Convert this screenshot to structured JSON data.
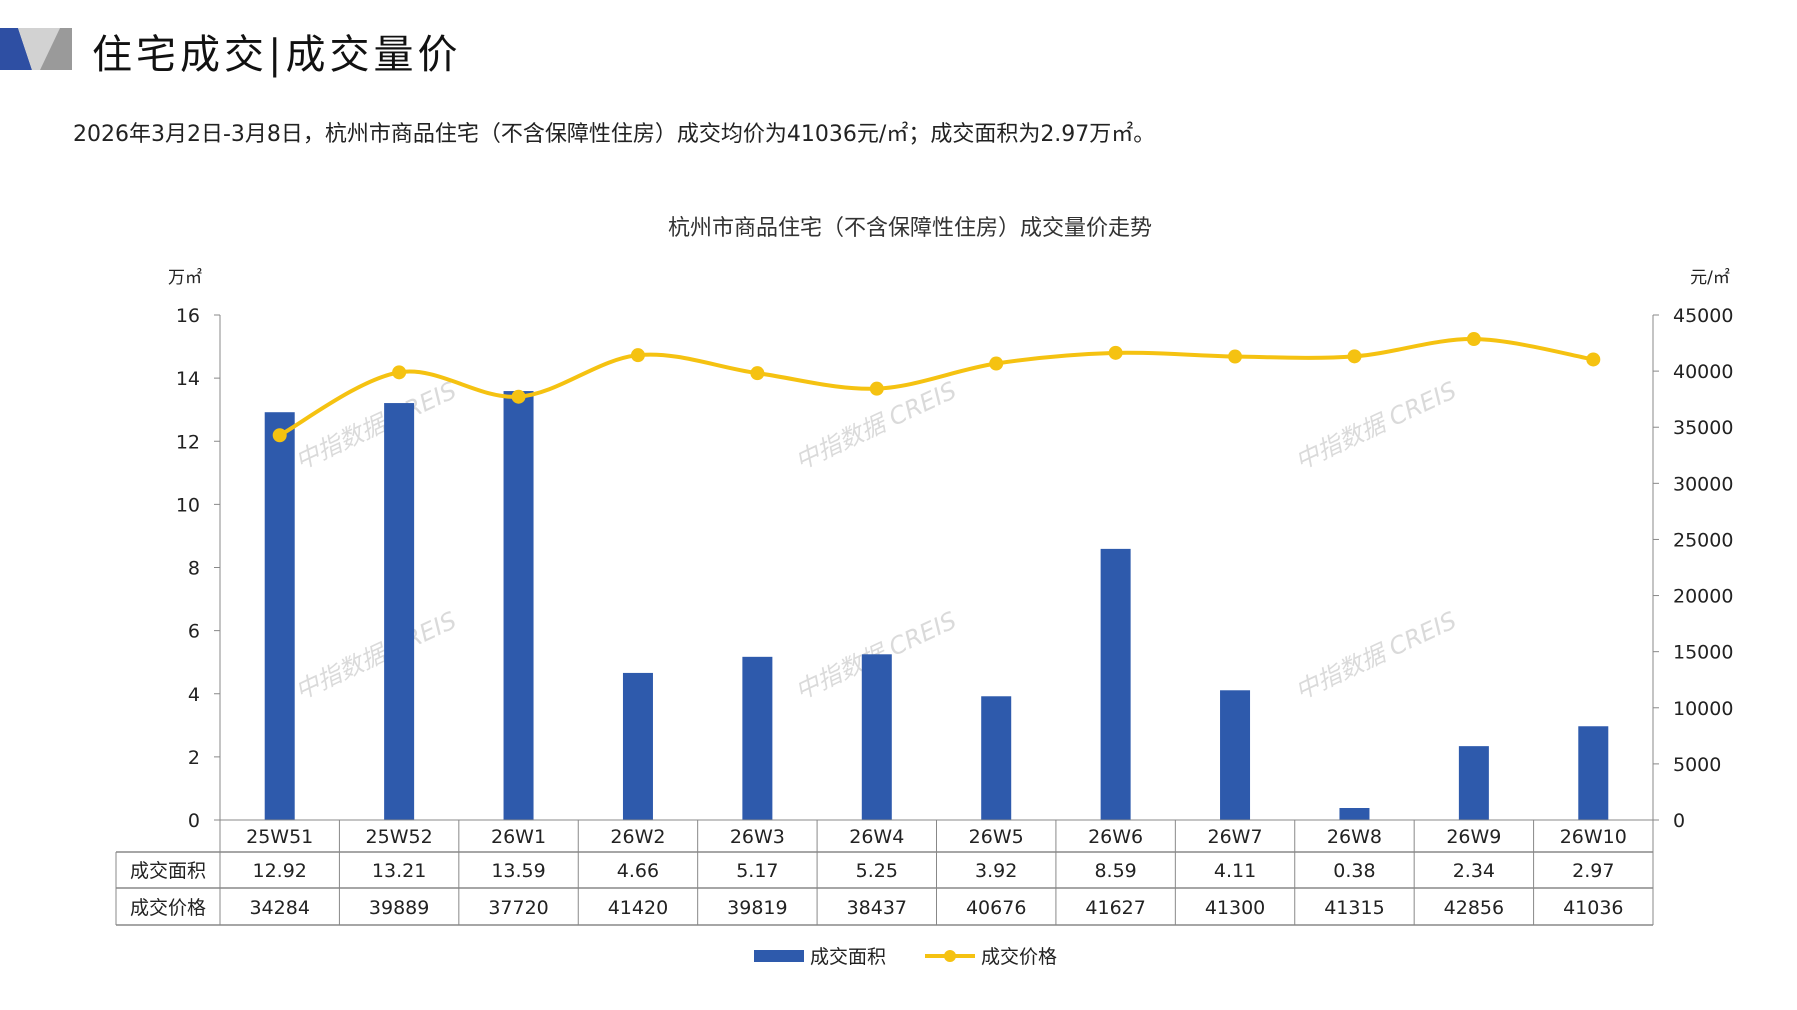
{
  "header": {
    "title": "住宅成交|成交量价",
    "subtitle": "2026年3月2日-3月8日，杭州市商品住宅（不含保障性住房）成交均价为41036元/㎡；成交面积为2.97万㎡。"
  },
  "watermark": "中指数据 CREIS",
  "colors": {
    "bar": "#2E5AAC",
    "line": "#F5C211",
    "logo_blue": "#2E4FA3",
    "logo_gray": "#9a9a9a"
  },
  "chart_data": {
    "type": "bar+line",
    "title": "杭州市商品住宅（不含保障性住房）成交量价走势",
    "categories": [
      "25W51",
      "25W52",
      "26W1",
      "26W2",
      "26W3",
      "26W4",
      "26W5",
      "26W6",
      "26W7",
      "26W8",
      "26W9",
      "26W10"
    ],
    "series": [
      {
        "name": "成交面积",
        "type": "bar",
        "axis": "left",
        "values": [
          12.92,
          13.21,
          13.59,
          4.66,
          5.17,
          5.25,
          3.92,
          8.59,
          4.11,
          0.38,
          2.34,
          2.97
        ],
        "display": [
          "12.92",
          "13.21",
          "13.59",
          "4.66",
          "5.17",
          "5.25",
          "3.92",
          "8.59",
          "4.11",
          "0.38",
          "2.34",
          "2.97"
        ]
      },
      {
        "name": "成交价格",
        "type": "line",
        "axis": "right",
        "values": [
          34284,
          39889,
          37720,
          41420,
          39819,
          38437,
          40676,
          41627,
          41300,
          41315,
          42856,
          41036
        ]
      }
    ],
    "left_axis": {
      "label": "万㎡",
      "ylim": [
        0,
        16
      ],
      "ticks": [
        0,
        2,
        4,
        6,
        8,
        10,
        12,
        14,
        16
      ]
    },
    "right_axis": {
      "label": "元/㎡",
      "ylim": [
        0,
        45000
      ],
      "ticks": [
        0,
        5000,
        10000,
        15000,
        20000,
        25000,
        30000,
        35000,
        40000,
        45000
      ]
    },
    "legend": "bottom",
    "grid": false,
    "data_table": true
  }
}
